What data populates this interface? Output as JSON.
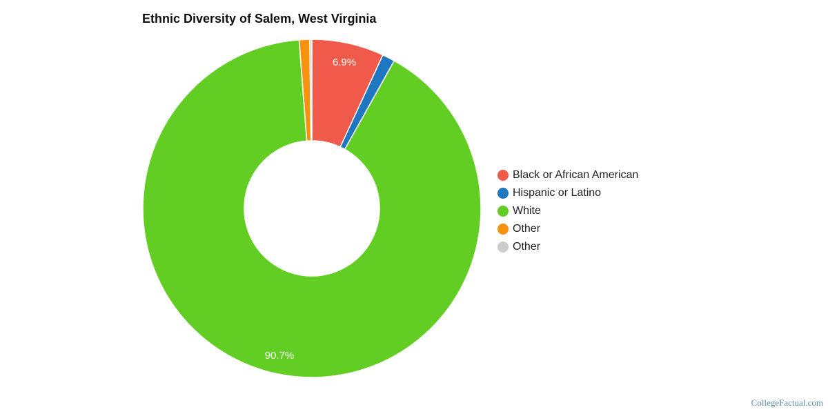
{
  "title": "Ethnic Diversity of Salem, West Virginia",
  "credit": "CollegeFactual.com",
  "chart_data": {
    "type": "pie",
    "subtype": "donut",
    "title": "Ethnic Diversity of Salem, West Virginia",
    "categories": [
      "Black or African American",
      "Hispanic or Latino",
      "White",
      "Other",
      "Other"
    ],
    "values": [
      6.9,
      1.2,
      90.7,
      1.0,
      0.2
    ],
    "colors": [
      "#f05a4b",
      "#1f77c0",
      "#62cd23",
      "#f7920f",
      "#cccccc"
    ],
    "data_labels": [
      {
        "category": "Black or African American",
        "text": "6.9%"
      },
      {
        "category": "White",
        "text": "90.7%"
      }
    ],
    "legend_position": "right",
    "start_angle_deg": 0,
    "direction": "clockwise"
  },
  "legend": {
    "items": [
      {
        "label": "Black or African American",
        "color": "#f05a4b"
      },
      {
        "label": "Hispanic or Latino",
        "color": "#1f77c0"
      },
      {
        "label": "White",
        "color": "#62cd23"
      },
      {
        "label": "Other",
        "color": "#f7920f"
      },
      {
        "label": "Other",
        "color": "#cccccc"
      }
    ]
  }
}
